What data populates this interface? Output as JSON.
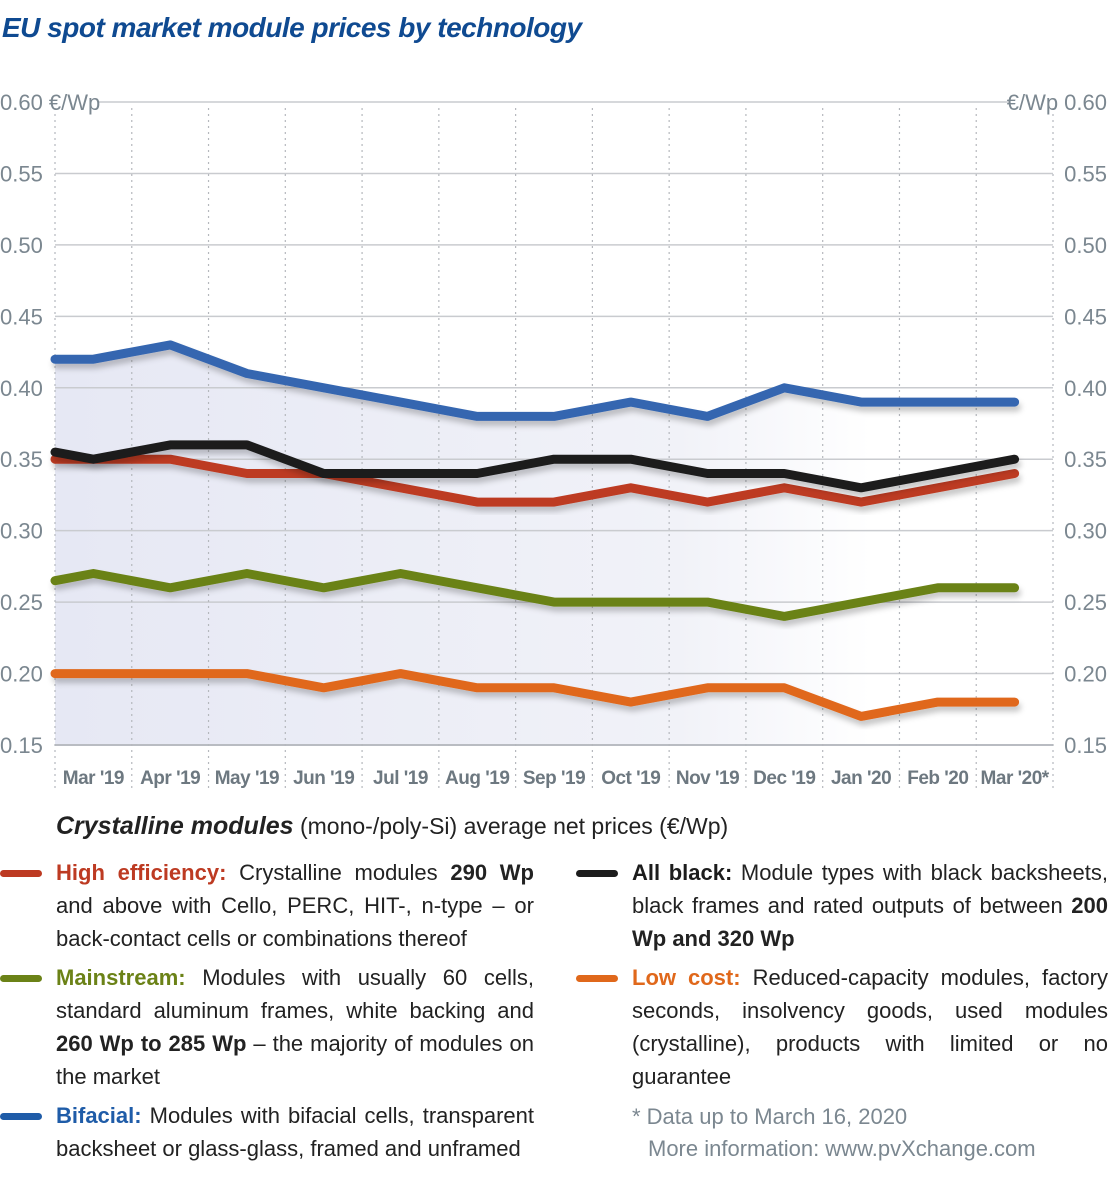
{
  "title": "EU spot market module prices  by technology",
  "chart_data": {
    "type": "line",
    "title": "EU spot market module prices  by technology",
    "ylabel": "€/Wp",
    "ylim": [
      0.15,
      0.6
    ],
    "yticks": [
      "0.60",
      "0.55",
      "0.50",
      "0.45",
      "0.40",
      "0.35",
      "0.30",
      "0.25",
      "0.20",
      "0.15"
    ],
    "ytick_values": [
      0.6,
      0.55,
      0.5,
      0.45,
      0.4,
      0.35,
      0.3,
      0.25,
      0.2,
      0.15
    ],
    "yunit_left": "€/Wp",
    "yunit_right": "€/Wp",
    "categories": [
      "Mar '19",
      "Apr '19",
      "May '19",
      "Jun '19",
      "Jul '19",
      "Aug '19",
      "Sep '19",
      "Oct '19",
      "Nov '19",
      "Dec '19",
      "Jan '20",
      "Feb '20",
      "Mar '20*"
    ],
    "grid": true,
    "series": [
      {
        "name": "Bifacial",
        "color": "#3466b0",
        "start": 0.42,
        "values": [
          0.42,
          0.43,
          0.41,
          0.4,
          0.39,
          0.38,
          0.38,
          0.39,
          0.38,
          0.4,
          0.39,
          0.39,
          0.39
        ]
      },
      {
        "name": "All black",
        "color": "#1c1c1c",
        "start": 0.355,
        "values": [
          0.35,
          0.36,
          0.36,
          0.34,
          0.34,
          0.34,
          0.35,
          0.35,
          0.34,
          0.34,
          0.33,
          0.34,
          0.35
        ]
      },
      {
        "name": "High efficiency",
        "color": "#bd3a22",
        "start": 0.35,
        "values": [
          0.35,
          0.35,
          0.34,
          0.34,
          0.33,
          0.32,
          0.32,
          0.33,
          0.32,
          0.33,
          0.32,
          0.33,
          0.34
        ]
      },
      {
        "name": "Mainstream",
        "color": "#6b8217",
        "start": 0.265,
        "values": [
          0.27,
          0.26,
          0.27,
          0.26,
          0.27,
          0.26,
          0.25,
          0.25,
          0.25,
          0.24,
          0.25,
          0.26,
          0.26
        ]
      },
      {
        "name": "Low cost",
        "color": "#e0681b",
        "start": 0.2,
        "values": [
          0.2,
          0.2,
          0.2,
          0.19,
          0.2,
          0.19,
          0.19,
          0.18,
          0.19,
          0.19,
          0.17,
          0.18,
          0.18
        ]
      }
    ]
  },
  "legend": {
    "heading_bold": "Crystalline modules",
    "heading_rest": " (mono-/poly-Si) average net prices (€/Wp)",
    "items": [
      {
        "name": "High efficiency:",
        "color": "#bd3a22",
        "text_a": " Crystalline modules ",
        "bold_a": "290 Wp",
        "text_b": " and above with Cello, PERC, HIT-, n-type – or back-contact cells or combinations thereof"
      },
      {
        "name": "Mainstream:",
        "color": "#6b8217",
        "text_a": " Modules with usually 60 cells, standard aluminum frames, white backing and ",
        "bold_a": "260 Wp to 285 Wp",
        "text_b": " – the majority of modules on the market"
      },
      {
        "name": "Bifacial:",
        "color": "#1f5ca8",
        "text_a": " Modules with bifacial cells, transparent backsheet or glass-glass, framed and unframed",
        "bold_a": "",
        "text_b": ""
      },
      {
        "name": "All black:",
        "color": "#1c1c1c",
        "text_a": " Module types with black backsheets, black frames and rated outputs of between ",
        "bold_a": "200 Wp and 320 Wp",
        "text_b": ""
      },
      {
        "name": "Low cost:",
        "color": "#e0681b",
        "text_a": " Reduced-capacity modules, factory seconds, insolvency goods, used modules (crystalline), products with limited or no guarantee",
        "bold_a": "",
        "text_b": ""
      }
    ]
  },
  "footnote": {
    "line1": "* Data up to March 16, 2020",
    "line2": "More information: www.pvXchange.com"
  }
}
